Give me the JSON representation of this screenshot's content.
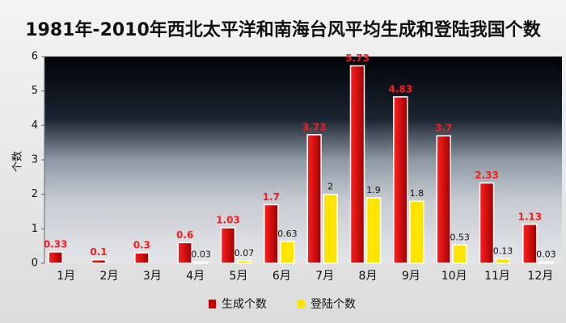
{
  "chart_data": {
    "type": "bar",
    "title": "1981年-2010年西北太平洋和南海台风平均生成和登陆我国个数",
    "y_label": "个数",
    "categories": [
      "1月",
      "2月",
      "3月",
      "4月",
      "5月",
      "6月",
      "7月",
      "8月",
      "9月",
      "10月",
      "11月",
      "12月"
    ],
    "series": [
      {
        "name": "生成个数",
        "color": "#cc0000",
        "label_color": "#ff1a1a",
        "values": [
          0.33,
          0.1,
          0.3,
          0.6,
          1.03,
          1.7,
          3.73,
          5.73,
          4.83,
          3.7,
          2.33,
          1.13
        ]
      },
      {
        "name": "登陆个数",
        "color": "#ffe400",
        "label_color": "#111111",
        "values": [
          null,
          null,
          null,
          0.03,
          0.07,
          0.63,
          2,
          1.9,
          1.8,
          0.53,
          0.13,
          0.03
        ]
      }
    ],
    "ylim": [
      0,
      6
    ],
    "yticks": [
      0,
      1,
      2,
      3,
      4,
      5,
      6
    ],
    "legend": "bottom"
  }
}
